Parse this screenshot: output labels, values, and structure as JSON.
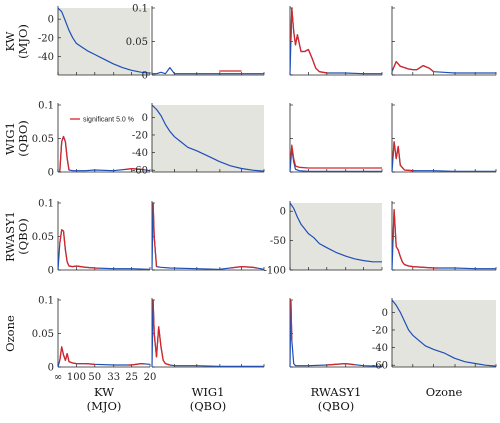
{
  "chart_data": {
    "type": "line",
    "title": "",
    "variables": [
      {
        "name": "KW",
        "sub": "(MJO)"
      },
      {
        "name": "WIG1",
        "sub": "(QBO)"
      },
      {
        "name": "RWASY1",
        "sub": "(QBO)"
      },
      {
        "name": "Ozone",
        "sub": ""
      }
    ],
    "x_tick_labels": [
      "∞",
      "100",
      "50",
      "33",
      "25",
      "20"
    ],
    "x_tick_freq": [
      0,
      0.01,
      0.02,
      0.0303,
      0.04,
      0.05
    ],
    "x_range": [
      0,
      0.05
    ],
    "legend": {
      "label": "significant 5.0 %",
      "color": "#d62728",
      "placement": "top-right of row 2, column 1"
    },
    "colors": {
      "series": "#1f4fb5",
      "significant": "#d62728",
      "diag_background": "#e4e4df"
    },
    "panels": [
      {
        "row": 0,
        "col": 0,
        "diag": true,
        "ylim": [
          -60,
          12
        ],
        "yticks": [
          0,
          -20,
          -40
        ],
        "x": [
          0,
          0.002,
          0.004,
          0.006,
          0.008,
          0.01,
          0.013,
          0.016,
          0.02,
          0.025,
          0.03,
          0.035,
          0.04,
          0.045,
          0.05
        ],
        "y": [
          12,
          8,
          -2,
          -12,
          -20,
          -26,
          -30,
          -34,
          -38,
          -43,
          -48,
          -52,
          -55,
          -57,
          -58
        ]
      },
      {
        "row": 0,
        "col": 1,
        "diag": false,
        "ylim": [
          0,
          0.1
        ],
        "yticks": [
          0,
          0.05,
          0.1
        ],
        "tick_labels": [
          "0",
          "0.05",
          "0.1"
        ],
        "x": [
          0,
          0.002,
          0.004,
          0.006,
          0.008,
          0.01,
          0.015,
          0.02,
          0.03,
          0.04,
          0.05
        ],
        "y": [
          0.002,
          0.002,
          0.004,
          0.002,
          0.011,
          0.002,
          0.002,
          0.002,
          0.002,
          0.002,
          0.002
        ],
        "sig": [
          [
            0.03,
            0.04,
            0.004
          ]
        ]
      },
      {
        "row": 0,
        "col": 2,
        "diag": false,
        "ylim": [
          0,
          0.1
        ],
        "x": [
          0,
          0.001,
          0.002,
          0.003,
          0.004,
          0.006,
          0.008,
          0.01,
          0.012,
          0.014,
          0.016,
          0.018,
          0.02,
          0.025,
          0.03,
          0.04,
          0.05
        ],
        "y": [
          0.001,
          0.1,
          0.065,
          0.045,
          0.06,
          0.035,
          0.035,
          0.038,
          0.025,
          0.01,
          0.005,
          0.004,
          0.003,
          0.003,
          0.003,
          0.002,
          0.002
        ],
        "sig": [
          [
            0.0005,
            0.02,
            0
          ]
        ]
      },
      {
        "row": 0,
        "col": 3,
        "diag": false,
        "ylim": [
          0,
          0.1
        ],
        "x": [
          0,
          0.002,
          0.004,
          0.006,
          0.008,
          0.01,
          0.012,
          0.015,
          0.018,
          0.02,
          0.025,
          0.03,
          0.04,
          0.05
        ],
        "y": [
          0.005,
          0.02,
          0.013,
          0.011,
          0.009,
          0.008,
          0.008,
          0.014,
          0.01,
          0.005,
          0.004,
          0.003,
          0.003,
          0.003
        ],
        "sig": [
          [
            0.0005,
            0.02,
            0
          ]
        ]
      },
      {
        "row": 1,
        "col": 0,
        "diag": false,
        "ylim": [
          0,
          0.1
        ],
        "yticks": [
          0,
          0.05,
          0.1
        ],
        "tick_labels": [
          "0",
          "0.05",
          "0.1"
        ],
        "x": [
          0,
          0.001,
          0.002,
          0.003,
          0.004,
          0.005,
          0.006,
          0.008,
          0.01,
          0.015,
          0.02,
          0.03,
          0.04,
          0.045,
          0.05
        ],
        "y": [
          0,
          0.001,
          0.045,
          0.053,
          0.045,
          0.02,
          0.003,
          0.002,
          0.002,
          0.002,
          0.003,
          0.002,
          0.005,
          0.004,
          0.002
        ],
        "sig": [
          [
            0.001,
            0.006,
            0
          ],
          [
            0.037,
            0.047,
            0
          ]
        ]
      },
      {
        "row": 1,
        "col": 1,
        "diag": true,
        "ylim": [
          -62,
          14
        ],
        "yticks": [
          0,
          -20,
          -40,
          -60
        ],
        "x": [
          0,
          0.002,
          0.004,
          0.006,
          0.008,
          0.01,
          0.013,
          0.016,
          0.02,
          0.025,
          0.03,
          0.035,
          0.04,
          0.045,
          0.05
        ],
        "y": [
          14,
          9,
          2,
          -8,
          -16,
          -22,
          -28,
          -34,
          -38,
          -44,
          -50,
          -55,
          -58,
          -60,
          -61
        ]
      },
      {
        "row": 1,
        "col": 2,
        "diag": false,
        "ylim": [
          0,
          0.1
        ],
        "x": [
          0,
          0.001,
          0.002,
          0.003,
          0.005,
          0.01,
          0.02,
          0.03,
          0.04,
          0.05
        ],
        "y": [
          0,
          0.035,
          0.015,
          0.004,
          0.002,
          0.001,
          0.001,
          0.001,
          0.001,
          0.001
        ],
        "sig": [
          [
            0.0005,
            0.05,
            0.005
          ]
        ]
      },
      {
        "row": 1,
        "col": 3,
        "diag": false,
        "ylim": [
          0,
          0.1
        ],
        "x": [
          0,
          0.001,
          0.002,
          0.003,
          0.004,
          0.006,
          0.01,
          0.02,
          0.03,
          0.04,
          0.05
        ],
        "y": [
          0,
          0.045,
          0.02,
          0.038,
          0.01,
          0.003,
          0.002,
          0.002,
          0.001,
          0.001,
          0.001
        ],
        "sig": [
          [
            0.0005,
            0.01,
            0
          ]
        ]
      },
      {
        "row": 2,
        "col": 0,
        "diag": false,
        "ylim": [
          0,
          0.1
        ],
        "yticks": [
          0,
          0.05,
          0.1
        ],
        "tick_labels": [
          "0",
          "0.05",
          "0.1"
        ],
        "x": [
          0,
          0.001,
          0.002,
          0.003,
          0.004,
          0.005,
          0.006,
          0.008,
          0.01,
          0.015,
          0.02,
          0.03,
          0.04,
          0.05
        ],
        "y": [
          0,
          0.04,
          0.06,
          0.058,
          0.03,
          0.012,
          0.006,
          0.005,
          0.006,
          0.004,
          0.003,
          0.002,
          0.002,
          0.001
        ],
        "sig": [
          [
            0.001,
            0.022,
            0
          ]
        ]
      },
      {
        "row": 2,
        "col": 1,
        "diag": false,
        "ylim": [
          0,
          0.1
        ],
        "x": [
          0,
          0.0005,
          0.001,
          0.002,
          0.004,
          0.008,
          0.02,
          0.03,
          0.04,
          0.045,
          0.05
        ],
        "y": [
          0,
          0.1,
          0.05,
          0.005,
          0.004,
          0.003,
          0.002,
          0.001,
          0.005,
          0.004,
          0.001
        ],
        "sig": [
          [
            0.0005,
            0.002,
            0
          ],
          [
            0.035,
            0.047,
            0
          ]
        ]
      },
      {
        "row": 2,
        "col": 2,
        "diag": true,
        "ylim": [
          -100,
          14
        ],
        "yticks": [
          0,
          -50,
          -100
        ],
        "x": [
          0,
          0.002,
          0.004,
          0.006,
          0.008,
          0.01,
          0.013,
          0.016,
          0.02,
          0.025,
          0.03,
          0.035,
          0.04,
          0.045,
          0.05
        ],
        "y": [
          14,
          5,
          -10,
          -22,
          -30,
          -38,
          -45,
          -55,
          -62,
          -70,
          -76,
          -81,
          -84,
          -86,
          -86
        ]
      },
      {
        "row": 2,
        "col": 3,
        "diag": false,
        "ylim": [
          0,
          0.1
        ],
        "x": [
          0,
          0.001,
          0.002,
          0.003,
          0.004,
          0.005,
          0.006,
          0.008,
          0.01,
          0.015,
          0.02,
          0.03,
          0.04,
          0.05
        ],
        "y": [
          0,
          0.09,
          0.035,
          0.03,
          0.02,
          0.012,
          0.008,
          0.006,
          0.005,
          0.004,
          0.003,
          0.003,
          0.002,
          0.002
        ],
        "sig": [
          [
            0.0005,
            0.022,
            0
          ]
        ]
      },
      {
        "row": 3,
        "col": 0,
        "diag": false,
        "ylim": [
          0,
          0.1
        ],
        "yticks": [
          0,
          0.05,
          0.1
        ],
        "tick_labels": [
          "0",
          "0.05",
          "0.1"
        ],
        "x": [
          0,
          0.001,
          0.002,
          0.003,
          0.004,
          0.005,
          0.006,
          0.008,
          0.01,
          0.015,
          0.02,
          0.03,
          0.04,
          0.045,
          0.05
        ],
        "y": [
          0,
          0.01,
          0.03,
          0.018,
          0.01,
          0.02,
          0.008,
          0.006,
          0.005,
          0.005,
          0.004,
          0.003,
          0.003,
          0.005,
          0.004
        ],
        "sig": [
          [
            0.001,
            0.02,
            0
          ],
          [
            0.038,
            0.047,
            0
          ]
        ]
      },
      {
        "row": 3,
        "col": 1,
        "diag": false,
        "ylim": [
          0,
          0.1
        ],
        "x": [
          0,
          0.0005,
          0.001,
          0.002,
          0.003,
          0.004,
          0.005,
          0.006,
          0.008,
          0.01,
          0.02,
          0.03,
          0.04,
          0.05
        ],
        "y": [
          0,
          0.1,
          0.05,
          0.015,
          0.06,
          0.03,
          0.01,
          0.005,
          0.003,
          0.002,
          0.002,
          0.001,
          0.001,
          0.001
        ],
        "sig": [
          [
            0.0005,
            0.008,
            0
          ]
        ]
      },
      {
        "row": 3,
        "col": 2,
        "diag": false,
        "ylim": [
          0,
          0.1
        ],
        "x": [
          0,
          0.0005,
          0.001,
          0.002,
          0.003,
          0.004,
          0.006,
          0.01,
          0.02,
          0.03,
          0.04,
          0.05
        ],
        "y": [
          0,
          0.1,
          0.04,
          0.005,
          0.002,
          0.002,
          0.002,
          0.002,
          0.003,
          0.005,
          0.002,
          0.001
        ],
        "sig": [
          [
            0.0005,
            0.001,
            0
          ],
          [
            0.02,
            0.035,
            0
          ]
        ]
      },
      {
        "row": 3,
        "col": 3,
        "diag": true,
        "ylim": [
          -62,
          14
        ],
        "yticks": [
          0,
          -20,
          -40,
          -60
        ],
        "x": [
          0,
          0.002,
          0.004,
          0.006,
          0.008,
          0.01,
          0.013,
          0.016,
          0.02,
          0.025,
          0.03,
          0.035,
          0.04,
          0.045,
          0.05
        ],
        "y": [
          14,
          8,
          0,
          -10,
          -20,
          -26,
          -32,
          -38,
          -42,
          -46,
          -52,
          -56,
          -58,
          -60,
          -61
        ]
      }
    ]
  }
}
